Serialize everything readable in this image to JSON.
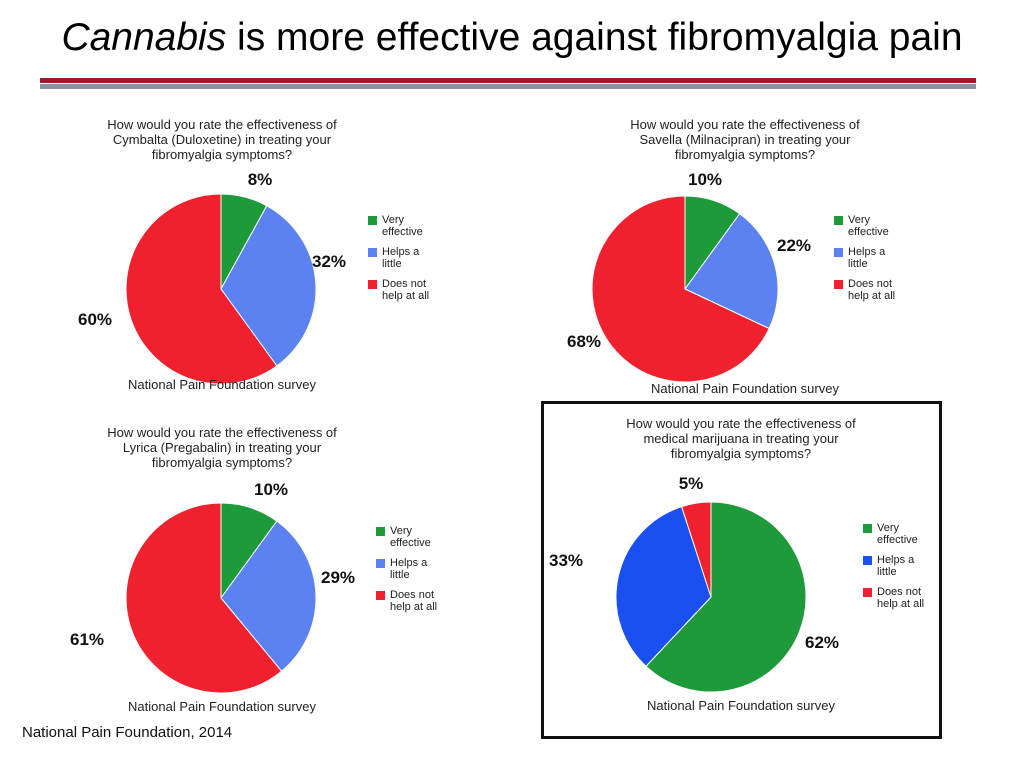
{
  "slide": {
    "title_italic": "Cannabis",
    "title_rest": " is more effective against fibromyalgia pain",
    "footer": "National Pain Foundation, 2014"
  },
  "chart_data": [
    {
      "type": "pie",
      "title_lines": [
        "How would you rate the effectiveness of",
        "Cymbalta (Duloxetine) in treating your",
        "fibromyalgia symptoms?"
      ],
      "categories": [
        "Very effective",
        "Helps a little",
        "Does not help at all"
      ],
      "legend_lines": [
        [
          "Very",
          "effective"
        ],
        [
          "Helps a",
          "little"
        ],
        [
          "Does not",
          "help at all"
        ]
      ],
      "values": [
        8,
        32,
        60
      ],
      "labels": [
        "8%",
        "32%",
        "60%"
      ],
      "colors": [
        "#1e9a3a",
        "#5b82f0",
        "#f0212f"
      ],
      "source": "National Pain Foundation survey"
    },
    {
      "type": "pie",
      "title_lines": [
        "How would you rate the effectiveness of",
        "Savella (Milnacipran) in treating your",
        "fibromyalgia symptoms?"
      ],
      "categories": [
        "Very effective",
        "Helps a little",
        "Does not help at all"
      ],
      "legend_lines": [
        [
          "Very",
          "effective"
        ],
        [
          "Helps a",
          "little"
        ],
        [
          "Does not",
          "help at all"
        ]
      ],
      "values": [
        10,
        22,
        68
      ],
      "labels": [
        "10%",
        "22%",
        "68%"
      ],
      "colors": [
        "#1e9a3a",
        "#5b82f0",
        "#f0212f"
      ],
      "source": "National Pain Foundation survey"
    },
    {
      "type": "pie",
      "title_lines": [
        "How would you rate the effectiveness of",
        "Lyrica (Pregabalin) in treating your",
        "fibromyalgia symptoms?"
      ],
      "categories": [
        "Very effective",
        "Helps a little",
        "Does not help at all"
      ],
      "legend_lines": [
        [
          "Very",
          "effective"
        ],
        [
          "Helps a",
          "little"
        ],
        [
          "Does not",
          "help at all"
        ]
      ],
      "values": [
        10,
        29,
        61
      ],
      "labels": [
        "10%",
        "29%",
        "61%"
      ],
      "colors": [
        "#1e9a3a",
        "#5b82f0",
        "#f0212f"
      ],
      "source": "National Pain Foundation survey"
    },
    {
      "type": "pie",
      "title_lines": [
        "How would you rate the effectiveness of",
        "medical marijuana in treating your",
        "fibromyalgia symptoms?"
      ],
      "categories": [
        "Very effective",
        "Helps a little",
        "Does not help at all"
      ],
      "legend_lines": [
        [
          "Very",
          "effective"
        ],
        [
          "Helps a",
          "little"
        ],
        [
          "Does not",
          "help at all"
        ]
      ],
      "values": [
        62,
        33,
        5
      ],
      "labels": [
        "62%",
        "33%",
        "5%"
      ],
      "colors": [
        "#1e9a3a",
        "#1a4ff0",
        "#f0212f"
      ],
      "source": "National Pain Foundation survey"
    }
  ]
}
